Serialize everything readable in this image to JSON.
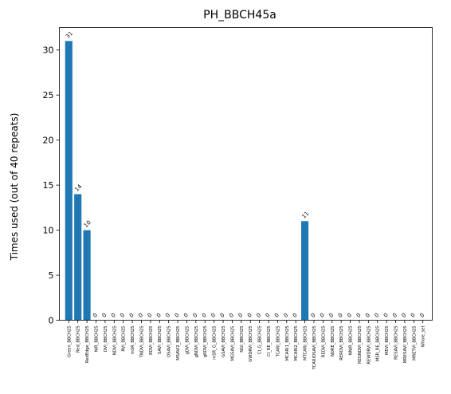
{
  "chart_data": {
    "type": "bar",
    "title": "PH_BBCH45a",
    "xlabel": "",
    "ylabel": "Times used (out of 40 repeats)",
    "ylim": [
      0,
      32.5
    ],
    "yticks": [
      0,
      5,
      10,
      15,
      20,
      25,
      30
    ],
    "grid": false,
    "bar_color": "#1f77b4",
    "categories": [
      "Green_BBCH25",
      "Red_BBCH25",
      "RedEdge_BBCH25",
      "NIR_BBCH25",
      "DVI_BBCH25",
      "NDVI_BBCH25",
      "RVI_BBCH25",
      "mSR_BBCH25",
      "TNDVI_BBCH25",
      "RDVI_BBCH25",
      "SAVI_BBCH25",
      "OSAVI_BBCH25",
      "MSAVI2_BBCH25",
      "gDVI_BBCH25",
      "gNDVI_BBCH25",
      "gRDVI_BBCH25",
      "mSR_G_BBCH25",
      "GSAVI_BBCH25",
      "MGSAVI_BBCH25",
      "NGI_BBCH25",
      "GWDRVI_BBCH25",
      "CI_G_BBCH25",
      "CI_RE_BBCH25",
      "TCARI_BBCH25",
      "MCARI1_BBCH25",
      "MCARI2_BBCH25",
      "MTCARI_BBCH25",
      "TCARIOSAVI_BBCH25",
      "REDVI_BBCH25",
      "NDRE_BBCH25",
      "RERDVI_BBCH25",
      "NNIR_BBCH25",
      "REGNDVI_BBCH25",
      "REWDRVI_BBCH25",
      "MSR_RE_BBCH25",
      "MEVI_BBCH25",
      "RESAVI_BBCH25",
      "MRESAVI_BBCH25",
      "MRETVI_BBCH25",
      "Whole_set"
    ],
    "values": [
      31,
      14,
      10,
      0,
      0,
      0,
      0,
      0,
      0,
      0,
      0,
      0,
      0,
      0,
      0,
      0,
      0,
      0,
      0,
      0,
      0,
      0,
      0,
      0,
      0,
      0,
      11,
      0,
      0,
      0,
      0,
      0,
      0,
      0,
      0,
      0,
      0,
      0,
      0,
      0
    ]
  }
}
